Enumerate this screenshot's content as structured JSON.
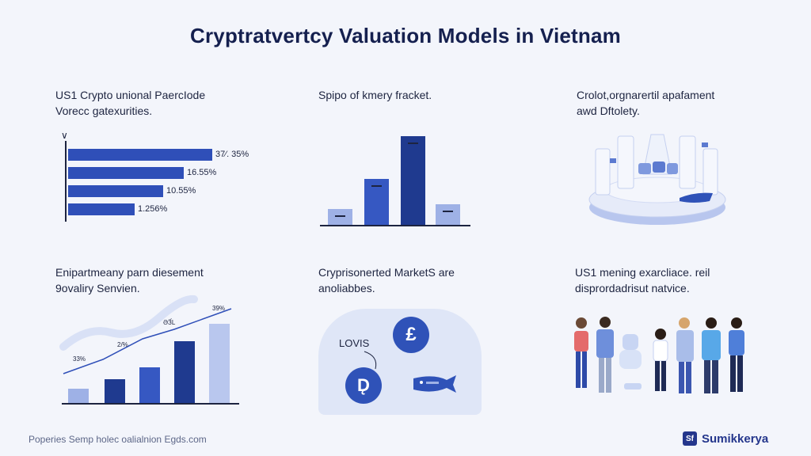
{
  "title": "Cryptratvertcy Valuation Models in Vietnam",
  "panel1": {
    "caption": [
      "US1 Crypto unional PaercIode",
      "Vorecc gatexurities."
    ],
    "bars": [
      {
        "label": "37⁄. 35%",
        "value": 1.0
      },
      {
        "label": "16.55%",
        "value": 0.8
      },
      {
        "label": "10.55%",
        "value": 0.66
      },
      {
        "label": "1.256%",
        "value": 0.46
      }
    ]
  },
  "panel2": {
    "caption": [
      "Spipo of kmery fracket."
    ],
    "bars": [
      {
        "value": 0.18,
        "color": "#9eb1e6"
      },
      {
        "value": 0.52,
        "color": "#3658c2"
      },
      {
        "value": 1.0,
        "color": "#1f3a8f"
      },
      {
        "value": 0.23,
        "color": "#9eb1e6"
      }
    ]
  },
  "panel3": {
    "caption": [
      "Crolot,orgnarertil apafament",
      "awd Dftolety."
    ]
  },
  "panel4": {
    "caption": [
      "Enipartmeany parn diesement",
      "9ovaliry Senvien."
    ],
    "labels": [
      "39%",
      "ƏӞ́L",
      "2/%",
      "33%"
    ],
    "bars": [
      0.17,
      0.28,
      0.42,
      0.72,
      0.92
    ]
  },
  "panel5": {
    "caption": [
      "Cryprisonerted MarketS are",
      "anoliabbes."
    ],
    "label": "LOVIS",
    "coin1": "£",
    "coin2": "D̨"
  },
  "panel6": {
    "caption": [
      "US1 mening exarcliace. reil",
      "disprordadrisut natvice."
    ]
  },
  "footer": {
    "left": "Poperies Semp holec oalialnion Egds.com",
    "brand": "Sumikkerya",
    "brand_logo": "Sf"
  },
  "colors": {
    "accent": "#2f4fb8",
    "dark": "#1f3a8f",
    "light": "#9eb1e6",
    "background": "#f3f5fb"
  }
}
